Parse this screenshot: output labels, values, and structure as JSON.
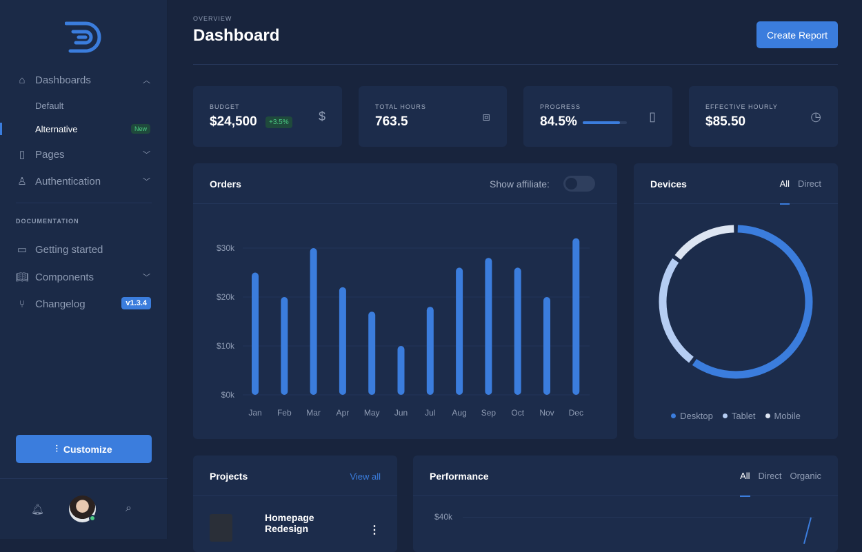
{
  "sidebar": {
    "nav": [
      {
        "label": "Dashboards",
        "icon": "home-icon"
      },
      {
        "label": "Pages",
        "icon": "file-icon"
      },
      {
        "label": "Authentication",
        "icon": "user-icon"
      }
    ],
    "subitems": [
      {
        "label": "Default"
      },
      {
        "label": "Alternative",
        "badge": "New"
      }
    ],
    "section": "DOCUMENTATION",
    "docs": [
      {
        "label": "Getting started",
        "icon": "clipboard-icon"
      },
      {
        "label": "Components",
        "icon": "book-icon"
      },
      {
        "label": "Changelog",
        "icon": "git-branch-icon",
        "badge": "v1.3.4"
      }
    ],
    "customize": "Customize"
  },
  "header": {
    "overline": "OVERVIEW",
    "title": "Dashboard",
    "create": "Create Report"
  },
  "stats": [
    {
      "label": "BUDGET",
      "value": "$24,500",
      "delta": "+3.5%",
      "icon": "dollar-icon"
    },
    {
      "label": "TOTAL HOURS",
      "value": "763.5",
      "icon": "briefcase-icon"
    },
    {
      "label": "PROGRESS",
      "value": "84.5%",
      "progress": 84.5,
      "icon": "clipboard-icon"
    },
    {
      "label": "EFFECTIVE HOURLY",
      "value": "$85.50",
      "icon": "clock-icon"
    }
  ],
  "orders": {
    "title": "Orders",
    "toggle_label": "Show affiliate:",
    "toggle_on": false
  },
  "devices": {
    "title": "Devices",
    "tabs": [
      "All",
      "Direct"
    ]
  },
  "projects": {
    "title": "Projects",
    "view_all": "View all",
    "items": [
      {
        "name": "Homepage Redesign"
      }
    ]
  },
  "performance": {
    "title": "Performance",
    "tabs": [
      "All",
      "Direct",
      "Organic"
    ],
    "ytick": "$40k"
  },
  "colors": {
    "accent": "#3b7ddd",
    "success": "#4ccd85"
  },
  "chart_data": [
    {
      "type": "bar",
      "categories": [
        "Jan",
        "Feb",
        "Mar",
        "Apr",
        "May",
        "Jun",
        "Jul",
        "Aug",
        "Sep",
        "Oct",
        "Nov",
        "Dec"
      ],
      "values": [
        25,
        20,
        30,
        22,
        17,
        10,
        18,
        26,
        28,
        26,
        20,
        32
      ],
      "yticks": [
        "$0k",
        "$10k",
        "$20k",
        "$30k"
      ],
      "ylim": [
        0,
        32
      ],
      "grid": true
    },
    {
      "type": "pie",
      "labels": [
        "Desktop",
        "Tablet",
        "Mobile"
      ],
      "values": [
        60,
        25,
        15
      ],
      "colors": [
        "#3b7ddd",
        "#b5cdf3",
        "#dde5f2"
      ],
      "legend": "bottom"
    }
  ]
}
